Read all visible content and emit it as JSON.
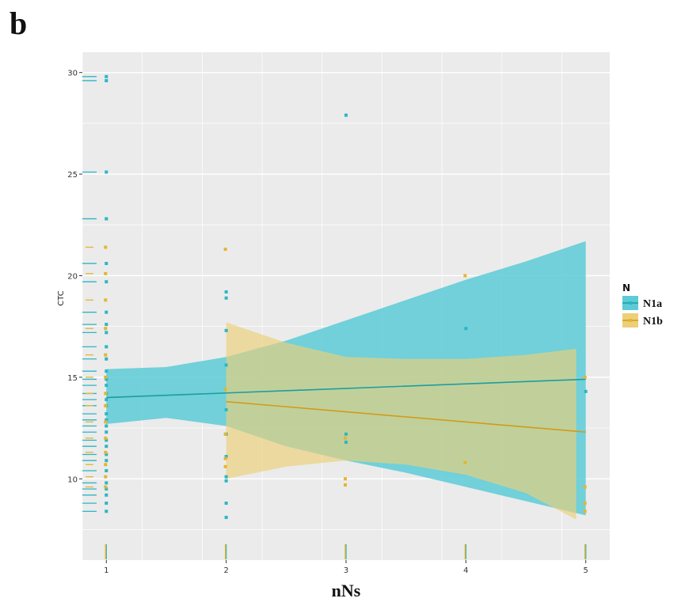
{
  "panel_label": "b",
  "chart_data": {
    "type": "scatter",
    "xlabel": "nNs",
    "ylabel": "CTC",
    "xlim": [
      0.8,
      5.2
    ],
    "ylim": [
      6.0,
      31.0
    ],
    "x_ticks": [
      1,
      2,
      3,
      4,
      5
    ],
    "y_ticks": [
      10,
      15,
      20,
      25,
      30
    ],
    "grid": true,
    "legend": {
      "title": "N",
      "position": "right"
    },
    "series": [
      {
        "name": "N1a",
        "color": "#2bb6c4",
        "band_color": "#5ccbd6",
        "line_color": "#1b9ea0",
        "points": [
          [
            1,
            29.8
          ],
          [
            1,
            29.6
          ],
          [
            1,
            25.1
          ],
          [
            1,
            22.8
          ],
          [
            1,
            20.6
          ],
          [
            1,
            19.7
          ],
          [
            1,
            18.2
          ],
          [
            1,
            17.6
          ],
          [
            1,
            17.2
          ],
          [
            1,
            16.5
          ],
          [
            1,
            15.9
          ],
          [
            1,
            15.3
          ],
          [
            1,
            14.9
          ],
          [
            1,
            14.6
          ],
          [
            1,
            14.2
          ],
          [
            1,
            13.9
          ],
          [
            1,
            13.6
          ],
          [
            1,
            13.2
          ],
          [
            1,
            12.9
          ],
          [
            1,
            12.6
          ],
          [
            1,
            12.3
          ],
          [
            1,
            11.9
          ],
          [
            1,
            11.6
          ],
          [
            1,
            11.2
          ],
          [
            1,
            10.9
          ],
          [
            1,
            10.4
          ],
          [
            1,
            9.8
          ],
          [
            1,
            9.5
          ],
          [
            1,
            9.2
          ],
          [
            1,
            8.8
          ],
          [
            1,
            8.4
          ],
          [
            2,
            19.2
          ],
          [
            2,
            18.9
          ],
          [
            2,
            17.3
          ],
          [
            2,
            15.6
          ],
          [
            2,
            13.4
          ],
          [
            2,
            12.2
          ],
          [
            2,
            11.1
          ],
          [
            2,
            10.1
          ],
          [
            2,
            9.9
          ],
          [
            2,
            8.8
          ],
          [
            2,
            8.1
          ],
          [
            3,
            27.9
          ],
          [
            3,
            12.2
          ],
          [
            3,
            11.8
          ],
          [
            4,
            17.4
          ],
          [
            5,
            14.3
          ]
        ],
        "trend": [
          [
            1,
            14.0
          ],
          [
            5,
            14.9
          ]
        ],
        "ci_upper": [
          [
            1,
            15.4
          ],
          [
            1.5,
            15.5
          ],
          [
            2,
            16.0
          ],
          [
            2.5,
            16.8
          ],
          [
            3,
            17.8
          ],
          [
            3.5,
            18.8
          ],
          [
            4,
            19.8
          ],
          [
            4.5,
            20.7
          ],
          [
            5,
            21.7
          ]
        ],
        "ci_lower": [
          [
            1,
            12.7
          ],
          [
            1.5,
            13.0
          ],
          [
            2,
            12.6
          ],
          [
            2.5,
            11.6
          ],
          [
            3,
            10.9
          ],
          [
            3.5,
            10.3
          ],
          [
            4,
            9.6
          ],
          [
            4.5,
            8.9
          ],
          [
            5,
            8.2
          ]
        ]
      },
      {
        "name": "N1b",
        "color": "#e5b52e",
        "band_color": "#ecd078",
        "line_color": "#d29b1a",
        "points": [
          [
            1,
            21.4
          ],
          [
            1,
            20.1
          ],
          [
            1,
            18.8
          ],
          [
            1,
            17.4
          ],
          [
            1,
            16.1
          ],
          [
            1,
            15.0
          ],
          [
            1,
            14.2
          ],
          [
            1,
            13.6
          ],
          [
            1,
            12.8
          ],
          [
            1,
            12.0
          ],
          [
            1,
            11.3
          ],
          [
            1,
            10.7
          ],
          [
            1,
            10.1
          ],
          [
            1,
            9.6
          ],
          [
            2,
            21.3
          ],
          [
            2,
            14.4
          ],
          [
            2,
            12.2
          ],
          [
            2,
            11.0
          ],
          [
            2,
            10.6
          ],
          [
            3,
            12.0
          ],
          [
            3,
            10.0
          ],
          [
            3,
            9.7
          ],
          [
            4,
            20.0
          ],
          [
            4,
            10.8
          ],
          [
            5,
            15.0
          ],
          [
            5,
            9.6
          ],
          [
            5,
            8.8
          ],
          [
            5,
            8.4
          ]
        ],
        "trend": [
          [
            2,
            13.8
          ],
          [
            5,
            12.3
          ]
        ],
        "ci_upper": [
          [
            2,
            17.7
          ],
          [
            2.5,
            16.7
          ],
          [
            3,
            16.0
          ],
          [
            3.5,
            15.9
          ],
          [
            4,
            15.9
          ],
          [
            4.5,
            16.1
          ],
          [
            4.92,
            16.4
          ]
        ],
        "ci_lower": [
          [
            2,
            10.0
          ],
          [
            2.5,
            10.6
          ],
          [
            3,
            10.9
          ],
          [
            3.5,
            10.7
          ],
          [
            4,
            10.2
          ],
          [
            4.5,
            9.3
          ],
          [
            4.92,
            8.0
          ]
        ]
      }
    ]
  }
}
